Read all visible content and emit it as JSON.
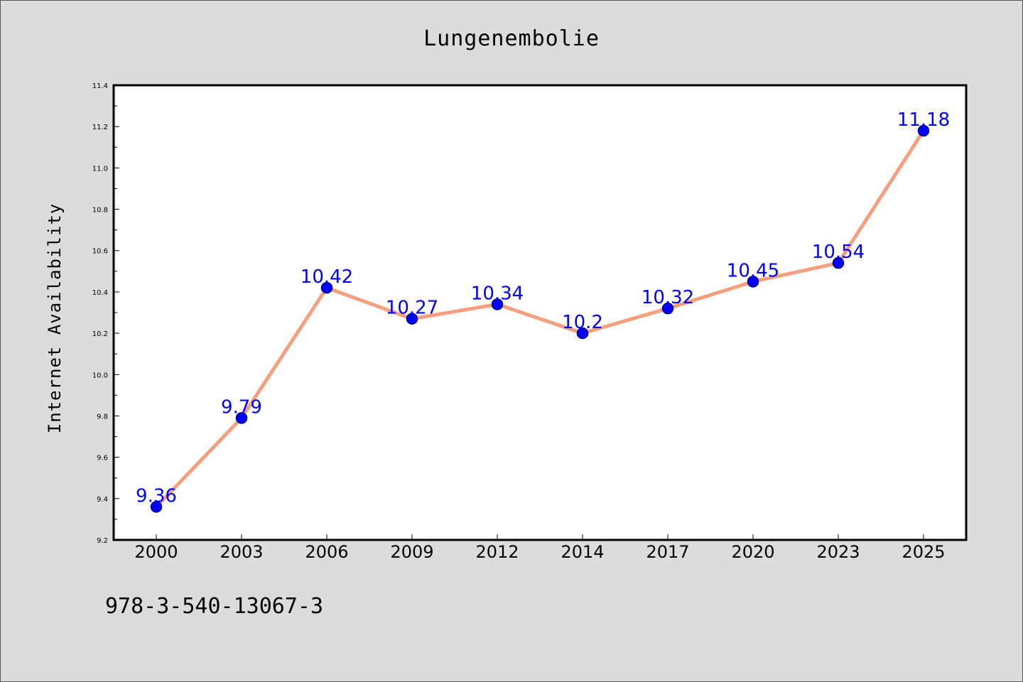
{
  "chart_data": {
    "type": "line",
    "title": "Lungenembolie",
    "xlabel": "",
    "ylabel": "Internet Availability",
    "categories": [
      "2000",
      "2003",
      "2006",
      "2009",
      "2012",
      "2014",
      "2017",
      "2020",
      "2023",
      "2025"
    ],
    "series": [
      {
        "values": [
          9.36,
          9.79,
          10.42,
          10.27,
          10.34,
          10.2,
          10.32,
          10.45,
          10.54,
          11.18
        ],
        "data_labels": [
          "9.36",
          "9.79",
          "10.42",
          "10.27",
          "10.34",
          "10.2",
          "10.32",
          "10.45",
          "10.54",
          "11.18"
        ]
      }
    ],
    "ylim": [
      9.2,
      11.4
    ],
    "yticks": [
      "9.2",
      "9.4",
      "9.6",
      "9.8",
      "10.0",
      "10.2",
      "10.4",
      "10.6",
      "10.8",
      "11.0",
      "11.2",
      "11.4"
    ],
    "grid": false,
    "legend": "none",
    "colors": {
      "line": "#f4a07e",
      "marker": "#0000ff",
      "marker_edge": "#000080",
      "label": "#0000ff",
      "background": "#dcdcdc",
      "plot_background": "#ffffff"
    }
  },
  "footer": {
    "isbn": "978-3-540-13067-3"
  }
}
